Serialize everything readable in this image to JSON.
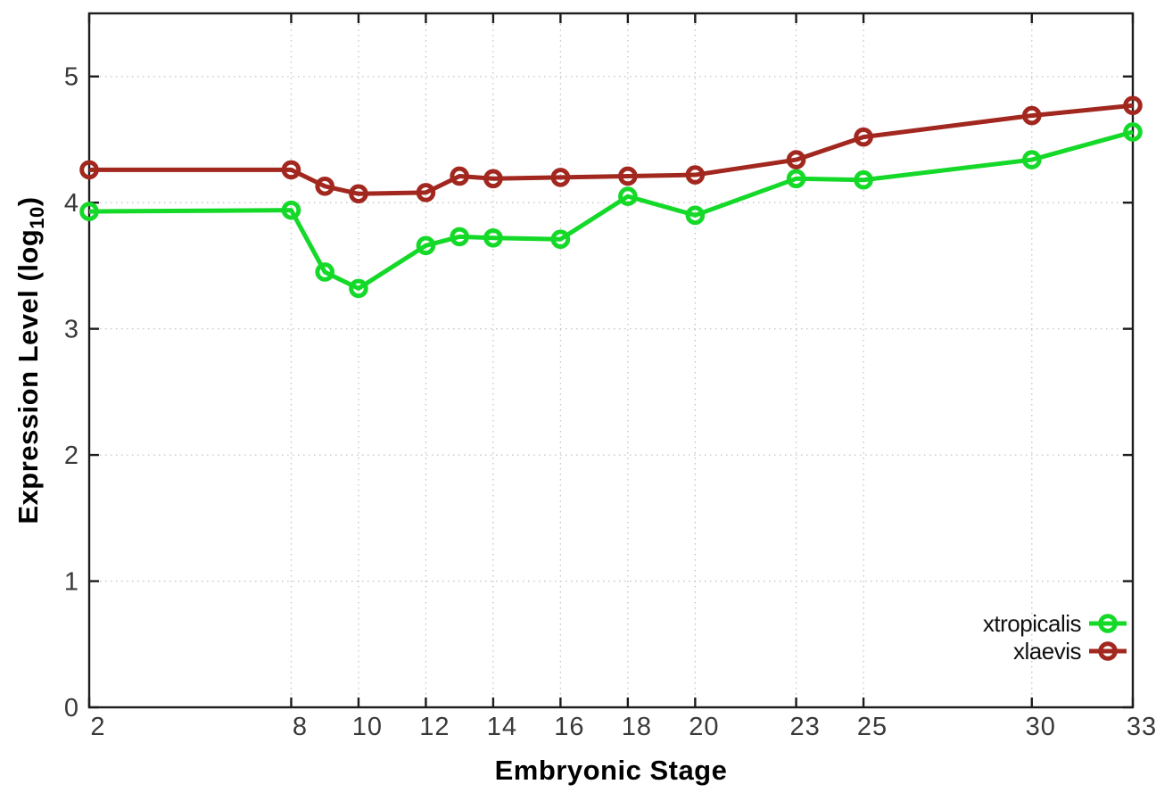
{
  "chart_data": {
    "type": "line",
    "title": "",
    "xlabel": "Embryonic Stage",
    "ylabel": "Expression Level (log10)",
    "ylabel_rich": {
      "prefix": "Expression Level (log",
      "subscript": "10",
      "suffix": ")"
    },
    "x": [
      2,
      8,
      9,
      10,
      12,
      13,
      14,
      16,
      18,
      20,
      23,
      25,
      30,
      33
    ],
    "series": [
      {
        "name": "xtropicalis",
        "color": "#15d929",
        "values": [
          3.93,
          3.94,
          3.45,
          3.32,
          3.66,
          3.73,
          3.72,
          3.71,
          4.05,
          3.9,
          4.19,
          4.18,
          4.34,
          4.56
        ]
      },
      {
        "name": "xlaevis",
        "color": "#a1271f",
        "values": [
          4.26,
          4.26,
          4.13,
          4.07,
          4.08,
          4.21,
          4.19,
          4.2,
          4.21,
          4.22,
          4.34,
          4.52,
          4.69,
          4.77
        ]
      }
    ],
    "xlim": [
      2,
      33
    ],
    "ylim": [
      0,
      5.5
    ],
    "xticks": [
      2,
      8,
      10,
      12,
      14,
      16,
      18,
      20,
      23,
      25,
      30,
      33
    ],
    "yticks": [
      0,
      1,
      2,
      3,
      4,
      5
    ],
    "grid": true,
    "legend_position": "bottom-right",
    "marker": "open-circle",
    "line_width": 5
  },
  "styles": {
    "background": "#ffffff",
    "border_color": "#1c1c1c",
    "grid_color": "#c3c3c3",
    "tick_label_color": "#3a3a3a",
    "title_color": "#000000"
  }
}
